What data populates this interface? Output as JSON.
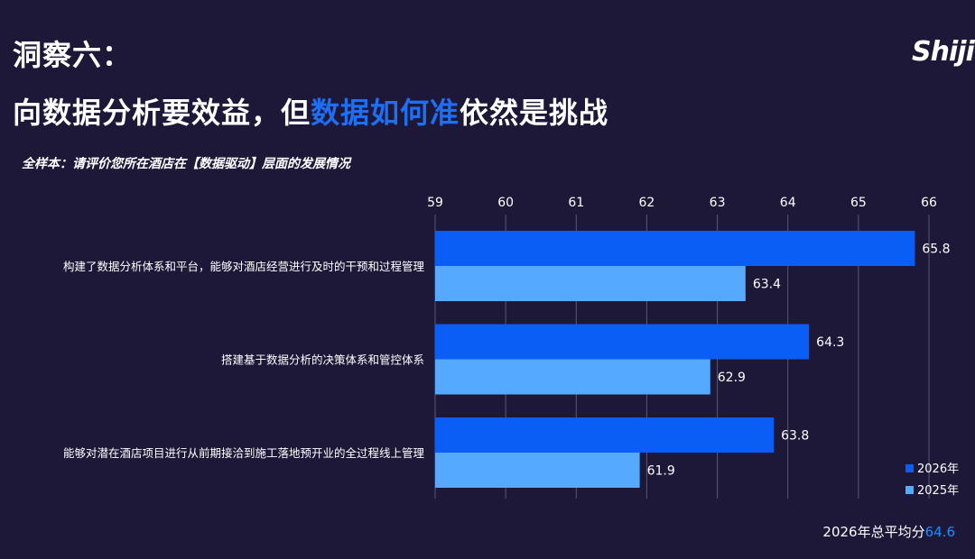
{
  "header": {
    "title_line1": "洞察六：",
    "title_line2_pre": "向数据分析要效益，但",
    "title_line2_highlight": "数据如何准",
    "title_line2_post": "依然是挑战",
    "logo": "Shiji"
  },
  "subtitle": "全样本：请评价您所在酒店在【数据驱动】层面的发展情况",
  "footer": {
    "label": "2026年总平均分",
    "value": "64.6"
  },
  "colors": {
    "background": "#1d1838",
    "series_2026": "#0a5ef5",
    "series_2025": "#55a9ff",
    "grid": "#5a5670",
    "highlight": "#1f6ff5"
  },
  "chart_data": {
    "type": "bar",
    "orientation": "horizontal",
    "categories": [
      "构建了数据分析体系和平台，能够对酒店经营进行及时的干预和过程管理",
      "搭建基于数据分析的决策体系和管控体系",
      "能够对潜在酒店项目进行从前期接洽到施工落地预开业的全过程线上管理"
    ],
    "series": [
      {
        "name": "2026年",
        "values": [
          65.8,
          64.3,
          63.8
        ],
        "labels": [
          "65.8",
          "64.3",
          "63.8"
        ]
      },
      {
        "name": "2025年",
        "values": [
          63.4,
          62.9,
          61.9
        ],
        "labels": [
          "63.4",
          "62.9",
          "61.9"
        ]
      }
    ],
    "xlim": [
      59,
      66
    ],
    "xticks": [
      "59",
      "60",
      "61",
      "62",
      "63",
      "64",
      "65",
      "66"
    ],
    "axis_position": "top",
    "grid": true,
    "legend_position": "bottom-right"
  }
}
